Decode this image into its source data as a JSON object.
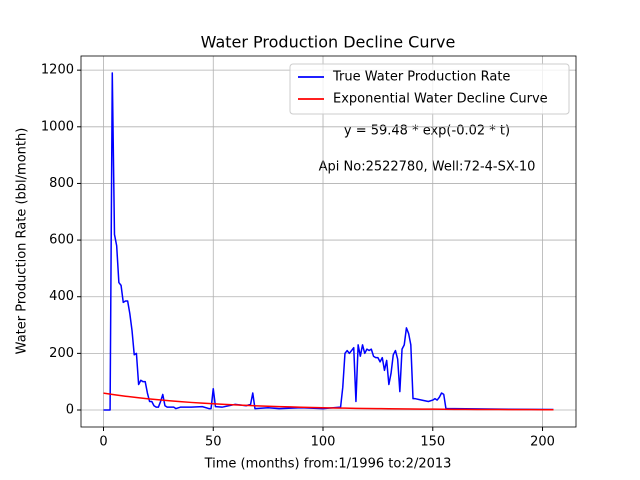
{
  "chart_data": {
    "type": "line",
    "title": "Water Production Decline Curve",
    "xlabel": "Time (months) from:1/1996 to:2/2013",
    "ylabel": "Water Production Rate (bbl/month)",
    "annotations": [
      "y = 59.48 * exp(-0.02 * t)",
      "Api No:2522780, Well:72-4-SX-10"
    ],
    "xlim": [
      -10.25,
      215.25
    ],
    "xticks": [
      0,
      50,
      100,
      150,
      200
    ],
    "ylim": [
      -60,
      1250
    ],
    "yticks": [
      0,
      200,
      400,
      600,
      800,
      1000,
      1200
    ],
    "grid": true,
    "legend": "upper right",
    "series": [
      {
        "name": "True Water Production Rate",
        "color": "#0000ff",
        "x": [
          0,
          3,
          4,
          5,
          6,
          7,
          8,
          9,
          10,
          11,
          12,
          13,
          14,
          15,
          16,
          17,
          18,
          19,
          20,
          21,
          22,
          23,
          24,
          25,
          26,
          27,
          28,
          29,
          32,
          33,
          35,
          40,
          45,
          48,
          49,
          50,
          51,
          54,
          60,
          65,
          67,
          68,
          69,
          75,
          80,
          90,
          100,
          108,
          109,
          110,
          111,
          112,
          113,
          114,
          115,
          116,
          117,
          118,
          119,
          120,
          121,
          122,
          123,
          124,
          125,
          126,
          127,
          128,
          129,
          130,
          131,
          132,
          133,
          134,
          135,
          136,
          137,
          138,
          139,
          140,
          141,
          142,
          145,
          148,
          150,
          151,
          152,
          153,
          154,
          155,
          156,
          160,
          180,
          205
        ],
        "values": [
          0,
          0,
          1190,
          620,
          580,
          450,
          440,
          380,
          385,
          385,
          340,
          280,
          195,
          200,
          90,
          105,
          100,
          100,
          60,
          30,
          30,
          15,
          10,
          10,
          30,
          55,
          15,
          10,
          10,
          5,
          10,
          10,
          12,
          5,
          5,
          75,
          12,
          10,
          20,
          15,
          20,
          60,
          5,
          8,
          5,
          8,
          5,
          10,
          80,
          200,
          210,
          200,
          210,
          220,
          30,
          230,
          190,
          230,
          200,
          215,
          210,
          215,
          190,
          185,
          185,
          170,
          185,
          140,
          175,
          90,
          130,
          195,
          210,
          180,
          65,
          215,
          230,
          290,
          270,
          230,
          40,
          40,
          35,
          30,
          35,
          40,
          35,
          45,
          60,
          55,
          5,
          5,
          3,
          2
        ]
      },
      {
        "name": "Exponential Water Decline Curve",
        "color": "#ff0000",
        "x": [
          0,
          5,
          10,
          15,
          20,
          25,
          30,
          35,
          40,
          45,
          50,
          55,
          60,
          65,
          70,
          75,
          80,
          85,
          90,
          95,
          100,
          105,
          110,
          115,
          120,
          125,
          130,
          135,
          140,
          145,
          150,
          155,
          160,
          165,
          170,
          175,
          180,
          185,
          190,
          195,
          200,
          205
        ],
        "values": [
          59.48,
          53.82,
          48.7,
          44.06,
          39.87,
          36.08,
          32.64,
          29.54,
          26.73,
          24.18,
          21.88,
          19.8,
          17.92,
          16.21,
          14.67,
          13.27,
          12.01,
          10.87,
          9.83,
          8.9,
          8.05,
          7.28,
          6.59,
          5.96,
          5.4,
          4.88,
          4.42,
          4.0,
          3.62,
          3.27,
          2.96,
          2.68,
          2.43,
          2.19,
          1.99,
          1.8,
          1.63,
          1.47,
          1.33,
          1.2,
          1.09,
          0.98
        ]
      }
    ]
  }
}
